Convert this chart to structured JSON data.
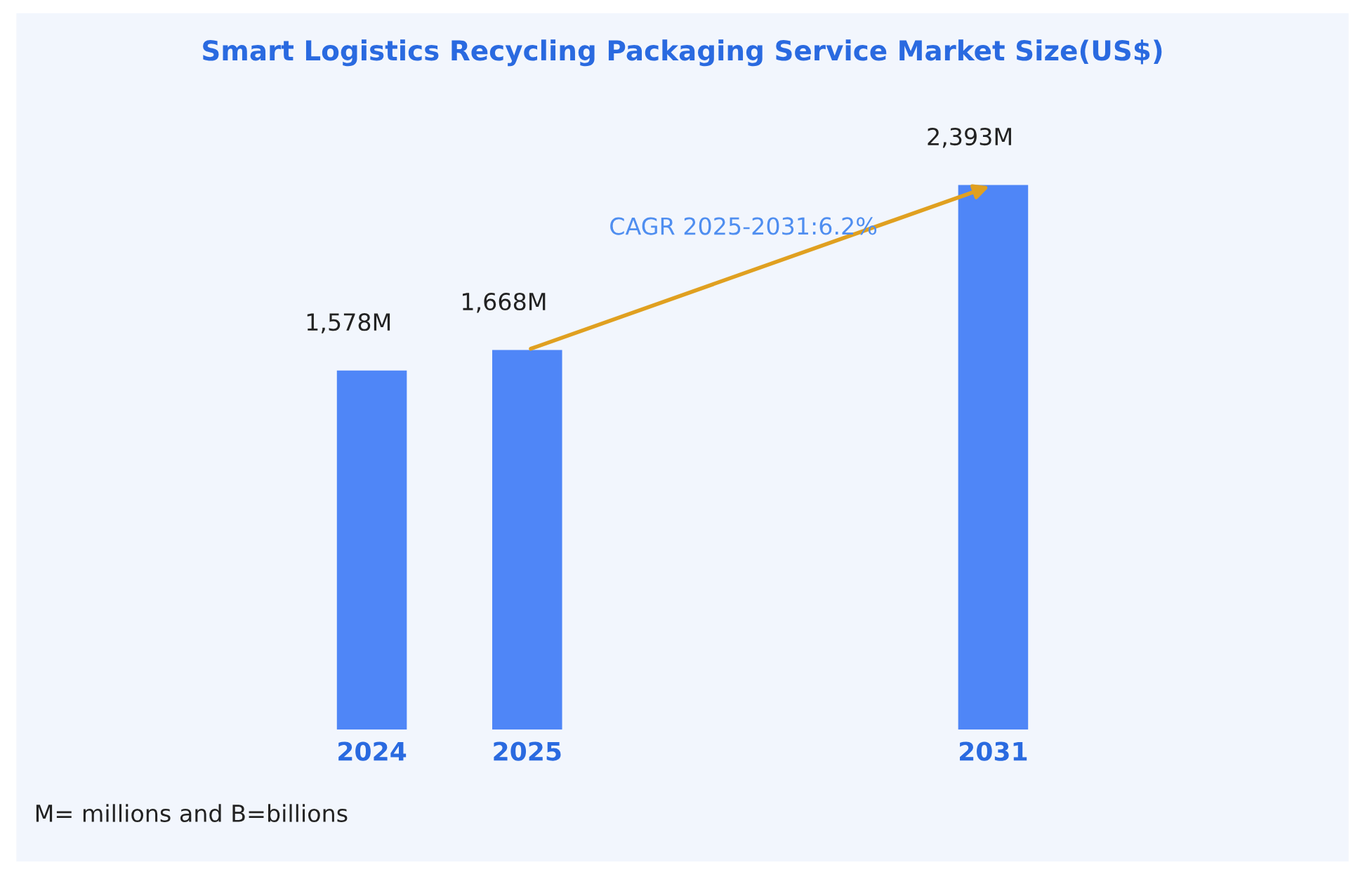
{
  "chart_data": {
    "type": "bar",
    "title": "Smart Logistics Recycling Packaging Service Market Size(US$)",
    "categories": [
      "2024",
      "2025",
      null,
      null,
      "2031"
    ],
    "values": [
      1578,
      1668,
      null,
      null,
      2393
    ],
    "value_labels": [
      "1,578M",
      "1,668M",
      null,
      null,
      "2,393M"
    ],
    "color": "#4f86f7",
    "tick_labels": "x",
    "grid": false,
    "legend": false,
    "annotations": [
      "CAGR 2025-2031:6.2%",
      "M= millions and B=billions"
    ]
  }
}
